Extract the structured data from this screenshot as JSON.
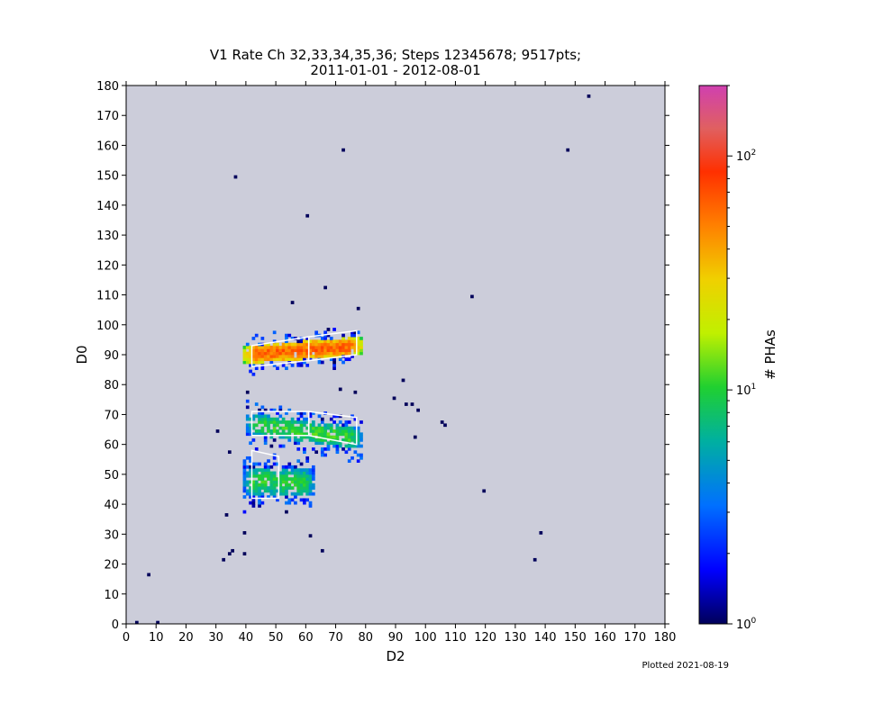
{
  "chart_data": {
    "type": "heatmap",
    "title": "V1 Rate Ch 32,33,34,35,36; Steps 12345678; 9517pts;",
    "subtitle": "2011-01-01 - 2012-08-01",
    "xlabel": "D2",
    "ylabel": "D0",
    "xlim": [
      0,
      180
    ],
    "ylim": [
      0,
      180
    ],
    "xticks": [
      0,
      10,
      20,
      30,
      40,
      50,
      60,
      70,
      80,
      90,
      100,
      110,
      120,
      130,
      140,
      150,
      160,
      170,
      180
    ],
    "yticks": [
      0,
      10,
      20,
      30,
      40,
      50,
      60,
      70,
      80,
      90,
      100,
      110,
      120,
      130,
      140,
      150,
      160,
      170,
      180
    ],
    "colorbar": {
      "label": "# PHAs",
      "scale": "log",
      "range": [
        1,
        200
      ],
      "tick_labels": [
        "10^0",
        "10^1",
        "10^2"
      ],
      "tick_values": [
        1,
        10,
        100
      ]
    },
    "background_color": "#cccdda",
    "clusters": [
      {
        "x_range": [
          39,
          78
        ],
        "center_y_at_x_min": 90,
        "center_y_at_x_max": 93,
        "half_width": 3,
        "peak_count": 80,
        "density": 0.95
      },
      {
        "x_range": [
          40,
          78
        ],
        "center_y_at_x_min": 67,
        "center_y_at_x_max": 62,
        "half_width": 3.5,
        "peak_count": 14,
        "density": 0.8
      },
      {
        "x_range": [
          39,
          62
        ],
        "center_y_at_x_min": 48,
        "center_y_at_x_max": 47,
        "half_width": 4.5,
        "peak_count": 12,
        "density": 0.85
      }
    ],
    "scatter_points": [
      [
        3,
        0
      ],
      [
        10,
        0
      ],
      [
        7,
        16
      ],
      [
        32,
        21
      ],
      [
        34,
        23
      ],
      [
        35,
        24
      ],
      [
        39,
        23
      ],
      [
        39,
        30
      ],
      [
        33,
        36
      ],
      [
        36,
        149
      ],
      [
        60,
        136
      ],
      [
        66,
        112
      ],
      [
        72,
        158
      ],
      [
        115,
        109
      ],
      [
        154,
        176
      ],
      [
        147,
        158
      ],
      [
        138,
        30
      ],
      [
        136,
        21
      ],
      [
        119,
        44
      ],
      [
        105,
        67
      ],
      [
        106,
        66
      ],
      [
        96,
        62
      ],
      [
        97,
        71
      ],
      [
        95,
        73
      ],
      [
        93,
        73
      ],
      [
        92,
        81
      ],
      [
        89,
        75
      ],
      [
        65,
        24
      ],
      [
        61,
        29
      ],
      [
        53,
        37
      ],
      [
        55,
        107
      ],
      [
        30,
        64
      ],
      [
        34,
        57
      ],
      [
        77,
        105
      ],
      [
        71,
        78
      ],
      [
        76,
        77
      ],
      [
        40,
        77
      ]
    ],
    "region_outlines": [
      [
        [
          42,
          93
        ],
        [
          61,
          96
        ],
        [
          61,
          88
        ],
        [
          42,
          86
        ]
      ],
      [
        [
          61,
          96
        ],
        [
          77,
          98
        ],
        [
          77,
          90
        ],
        [
          61,
          88
        ]
      ],
      [
        [
          42,
          71
        ],
        [
          61,
          71
        ],
        [
          61,
          63
        ],
        [
          42,
          63
        ]
      ],
      [
        [
          61,
          71
        ],
        [
          77,
          69
        ],
        [
          77,
          60
        ],
        [
          61,
          63
        ]
      ],
      [
        [
          42,
          58
        ],
        [
          51,
          56
        ],
        [
          51,
          42
        ],
        [
          42,
          42
        ]
      ]
    ]
  },
  "footer": {
    "plotted": "Plotted 2021-08-19"
  }
}
